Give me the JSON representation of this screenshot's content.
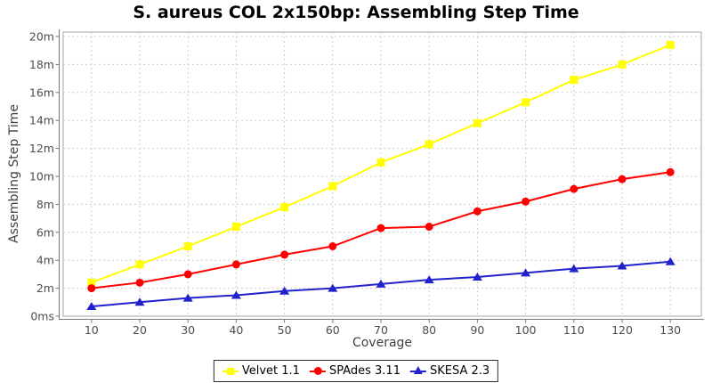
{
  "chart_data": {
    "type": "line",
    "title": "S. aureus COL 2x150bp: Assembling Step Time",
    "xlabel": "Coverage",
    "ylabel": "Assembling Step Time",
    "x": [
      10,
      20,
      30,
      40,
      50,
      60,
      70,
      80,
      90,
      100,
      110,
      120,
      130
    ],
    "x_tick_labels": [
      "10",
      "20",
      "30",
      "40",
      "50",
      "60",
      "70",
      "80",
      "90",
      "100",
      "110",
      "120",
      "130"
    ],
    "y_ticks": [
      0,
      2,
      4,
      6,
      8,
      10,
      12,
      14,
      16,
      18,
      20
    ],
    "y_tick_labels": [
      "0ms",
      "2m",
      "4m",
      "6m",
      "8m",
      "10m",
      "12m",
      "14m",
      "16m",
      "18m",
      "20m"
    ],
    "ylim": [
      0,
      20
    ],
    "y_unit": "minutes",
    "grid": true,
    "legend_position": "bottom-center",
    "series": [
      {
        "name": "Velvet 1.1",
        "color": "#ffff00",
        "marker": "square",
        "values": [
          2.4,
          3.7,
          5.0,
          6.4,
          7.8,
          9.3,
          11.0,
          12.3,
          13.8,
          15.3,
          16.9,
          18.0,
          19.4
        ]
      },
      {
        "name": "SPAdes 3.11",
        "color": "#ff0000",
        "marker": "circle",
        "values": [
          2.0,
          2.4,
          3.0,
          3.7,
          4.4,
          5.0,
          6.3,
          6.4,
          7.5,
          8.2,
          9.1,
          9.8,
          10.3
        ]
      },
      {
        "name": "SKESA 2.3",
        "color": "#2222cc",
        "marker": "triangle-up",
        "values": [
          0.7,
          1.0,
          1.3,
          1.5,
          1.8,
          2.0,
          2.3,
          2.6,
          2.8,
          3.1,
          3.4,
          3.6,
          3.9
        ]
      }
    ],
    "colors": {
      "grid": "#cccccc",
      "plot_border": "#a6a6a6",
      "axis": "#777777",
      "tick_label": "#4d4d4d",
      "title": "#000000",
      "background": "#ffffff"
    }
  }
}
